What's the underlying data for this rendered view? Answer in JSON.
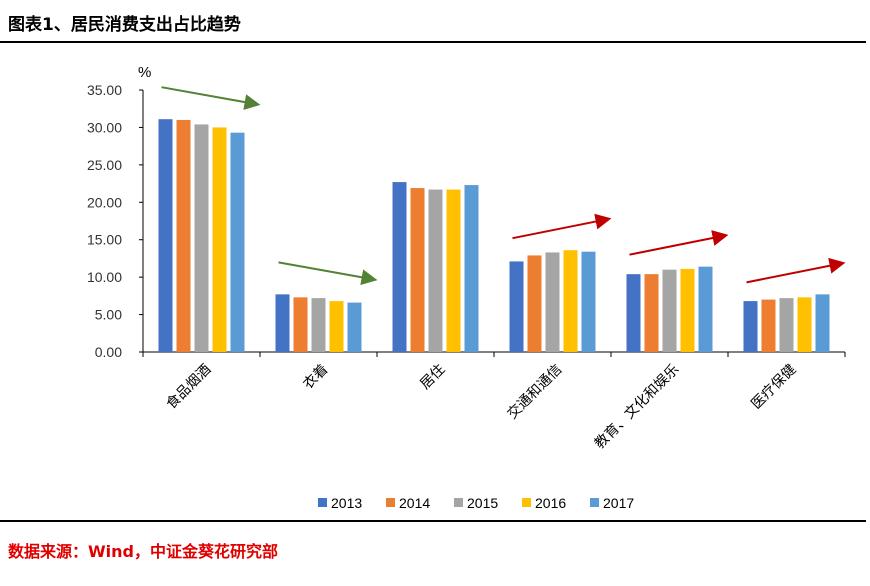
{
  "title": "图表1、居民消费支出占比趋势",
  "source": "数据来源：Wind，中证金葵花研究部",
  "chart_data": {
    "type": "bar",
    "title": "图表1、居民消费支出占比趋势",
    "ylabel": "%",
    "xlabel": "",
    "ylim": [
      0,
      35
    ],
    "yticks": [
      "0.00",
      "5.00",
      "10.00",
      "15.00",
      "20.00",
      "25.00",
      "30.00",
      "35.00"
    ],
    "categories": [
      "食品烟酒",
      "衣着",
      "居住",
      "交通和通信",
      "教育、文化和娱乐",
      "医疗保健"
    ],
    "series": [
      {
        "name": "2013",
        "color": "#4472c4",
        "values": [
          31.1,
          7.7,
          22.7,
          12.1,
          10.4,
          6.8
        ]
      },
      {
        "name": "2014",
        "color": "#ed7d31",
        "values": [
          31.0,
          7.3,
          21.9,
          12.9,
          10.4,
          7.0
        ]
      },
      {
        "name": "2015",
        "color": "#a5a5a5",
        "values": [
          30.4,
          7.2,
          21.7,
          13.3,
          11.0,
          7.2
        ]
      },
      {
        "name": "2016",
        "color": "#ffc000",
        "values": [
          30.0,
          6.8,
          21.7,
          13.6,
          11.1,
          7.3
        ]
      },
      {
        "name": "2017",
        "color": "#5b9bd5",
        "values": [
          29.3,
          6.6,
          22.3,
          13.4,
          11.4,
          7.7
        ]
      }
    ],
    "trend_arrows": [
      {
        "category": "食品烟酒",
        "direction": "down",
        "color": "#548235"
      },
      {
        "category": "衣着",
        "direction": "down",
        "color": "#548235"
      },
      {
        "category": "交通和通信",
        "direction": "up",
        "color": "#c00000"
      },
      {
        "category": "教育、文化和娱乐",
        "direction": "up",
        "color": "#c00000"
      },
      {
        "category": "医疗保健",
        "direction": "up",
        "color": "#c00000"
      }
    ],
    "legend": "bottom",
    "grid": false
  }
}
